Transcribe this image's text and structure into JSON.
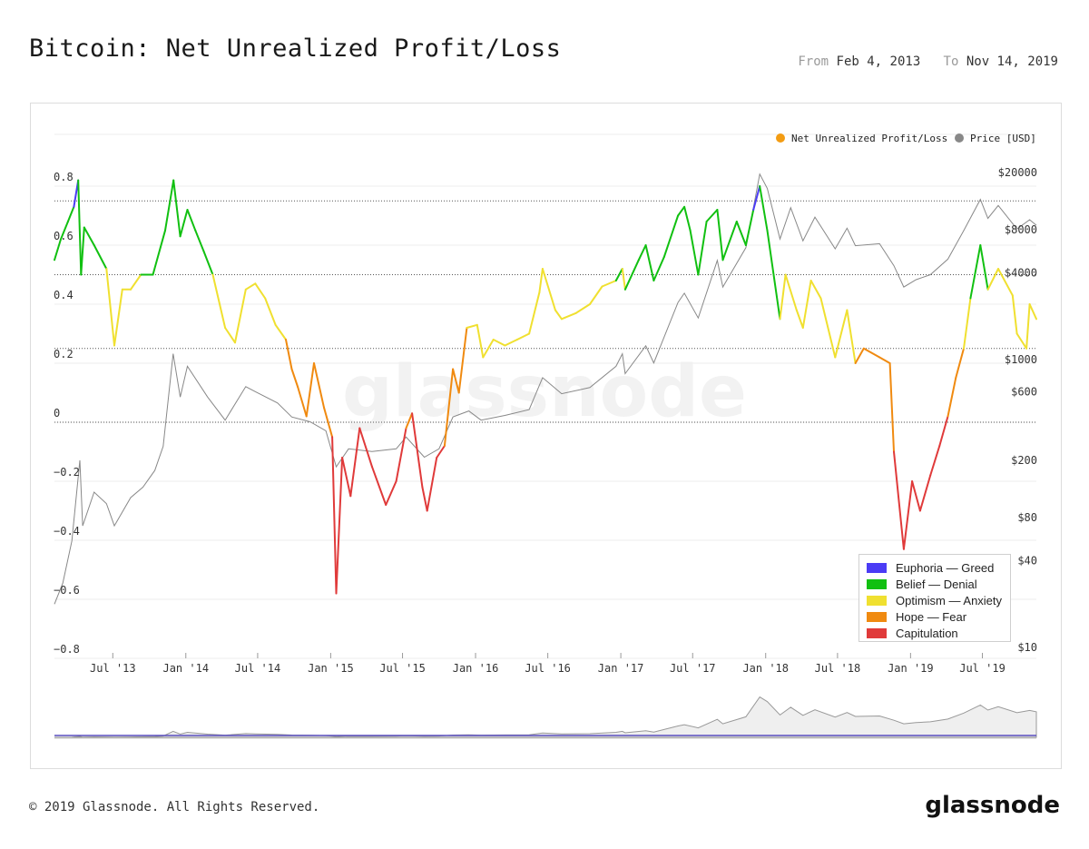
{
  "header": {
    "title": "Bitcoin: Net Unrealized Profit/Loss",
    "from_label": "From",
    "from_value": "Feb 4, 2013",
    "to_label": "To",
    "to_value": "Nov 14, 2019"
  },
  "footer": {
    "copyright": "© 2019 Glassnode. All Rights Reserved.",
    "brand": "glassnode"
  },
  "watermark": "glassnode",
  "colors": {
    "euphoria": "#4b3cf5",
    "belief": "#11c011",
    "optimism": "#f0e030",
    "hope": "#f08a10",
    "capitulation": "#e03a3a",
    "price": "#888888",
    "nupl_marker": "#f39c12"
  },
  "chart_data": {
    "type": "line",
    "title": "Bitcoin: Net Unrealized Profit/Loss",
    "x_ticks": [
      "Jul '13",
      "Jan '14",
      "Jul '14",
      "Jan '15",
      "Jul '15",
      "Jan '16",
      "Jul '16",
      "Jan '17",
      "Jul '17",
      "Jan '18",
      "Jul '18",
      "Jan '19",
      "Jul '19"
    ],
    "y_left_ticks": [
      "0.8",
      "0.6",
      "0.4",
      "0.2",
      "0",
      "−0.2",
      "−0.4",
      "−0.6",
      "−0.8"
    ],
    "y_left_range": [
      -0.8,
      0.8
    ],
    "y_right_ticks": [
      "$20000",
      "$8000",
      "$4000",
      "$1000",
      "$600",
      "$200",
      "$80",
      "$40",
      "$10"
    ],
    "y_right_scale": "log",
    "y_right_range": [
      10,
      20000
    ],
    "legend": {
      "series": [
        "Net Unrealized Profit/Loss",
        "Price [USD]"
      ],
      "placement": "top-right",
      "zones": [
        "Euphoria — Greed",
        "Belief — Denial",
        "Optimism — Anxiety",
        "Hope — Fear",
        "Capitulation"
      ]
    },
    "zone_thresholds": [
      0.75,
      0.5,
      0.25,
      0
    ],
    "x_range": [
      "2013-02-04",
      "2019-11-14"
    ],
    "series": [
      {
        "name": "Net Unrealized Profit/Loss",
        "points": [
          [
            "2013-02-04",
            0.55
          ],
          [
            "2013-02-20",
            0.62
          ],
          [
            "2013-03-10",
            0.68
          ],
          [
            "2013-03-25",
            0.73
          ],
          [
            "2013-04-05",
            0.82
          ],
          [
            "2013-04-12",
            0.5
          ],
          [
            "2013-04-20",
            0.66
          ],
          [
            "2013-05-15",
            0.6
          ],
          [
            "2013-06-15",
            0.52
          ],
          [
            "2013-07-05",
            0.26
          ],
          [
            "2013-07-25",
            0.45
          ],
          [
            "2013-08-15",
            0.45
          ],
          [
            "2013-09-10",
            0.5
          ],
          [
            "2013-10-10",
            0.5
          ],
          [
            "2013-11-10",
            0.65
          ],
          [
            "2013-12-01",
            0.82
          ],
          [
            "2013-12-18",
            0.63
          ],
          [
            "2014-01-05",
            0.72
          ],
          [
            "2014-01-25",
            0.65
          ],
          [
            "2014-02-15",
            0.58
          ],
          [
            "2014-03-10",
            0.5
          ],
          [
            "2014-04-10",
            0.32
          ],
          [
            "2014-05-05",
            0.27
          ],
          [
            "2014-06-01",
            0.45
          ],
          [
            "2014-06-25",
            0.47
          ],
          [
            "2014-07-20",
            0.42
          ],
          [
            "2014-08-15",
            0.33
          ],
          [
            "2014-09-10",
            0.28
          ],
          [
            "2014-09-25",
            0.18
          ],
          [
            "2014-10-10",
            0.12
          ],
          [
            "2014-11-01",
            0.02
          ],
          [
            "2014-11-20",
            0.2
          ],
          [
            "2014-12-15",
            0.05
          ],
          [
            "2015-01-05",
            -0.05
          ],
          [
            "2015-01-15",
            -0.58
          ],
          [
            "2015-01-30",
            -0.12
          ],
          [
            "2015-02-20",
            -0.25
          ],
          [
            "2015-03-15",
            -0.02
          ],
          [
            "2015-04-15",
            -0.15
          ],
          [
            "2015-05-20",
            -0.28
          ],
          [
            "2015-06-15",
            -0.2
          ],
          [
            "2015-07-10",
            -0.02
          ],
          [
            "2015-07-25",
            0.03
          ],
          [
            "2015-08-20",
            -0.22
          ],
          [
            "2015-09-01",
            -0.3
          ],
          [
            "2015-09-25",
            -0.12
          ],
          [
            "2015-10-15",
            -0.08
          ],
          [
            "2015-11-05",
            0.18
          ],
          [
            "2015-11-20",
            0.1
          ],
          [
            "2015-12-10",
            0.32
          ],
          [
            "2016-01-05",
            0.33
          ],
          [
            "2016-01-20",
            0.22
          ],
          [
            "2016-02-15",
            0.28
          ],
          [
            "2016-03-15",
            0.26
          ],
          [
            "2016-04-15",
            0.28
          ],
          [
            "2016-05-15",
            0.3
          ],
          [
            "2016-06-10",
            0.44
          ],
          [
            "2016-06-18",
            0.52
          ],
          [
            "2016-07-20",
            0.38
          ],
          [
            "2016-08-05",
            0.35
          ],
          [
            "2016-09-10",
            0.37
          ],
          [
            "2016-10-15",
            0.4
          ],
          [
            "2016-11-15",
            0.46
          ],
          [
            "2016-12-20",
            0.48
          ],
          [
            "2017-01-05",
            0.52
          ],
          [
            "2017-01-12",
            0.45
          ],
          [
            "2017-02-15",
            0.55
          ],
          [
            "2017-03-05",
            0.6
          ],
          [
            "2017-03-25",
            0.48
          ],
          [
            "2017-04-20",
            0.56
          ],
          [
            "2017-05-25",
            0.7
          ],
          [
            "2017-06-10",
            0.73
          ],
          [
            "2017-06-25",
            0.65
          ],
          [
            "2017-07-15",
            0.5
          ],
          [
            "2017-08-05",
            0.68
          ],
          [
            "2017-09-01",
            0.72
          ],
          [
            "2017-09-15",
            0.55
          ],
          [
            "2017-10-20",
            0.68
          ],
          [
            "2017-11-12",
            0.6
          ],
          [
            "2017-12-01",
            0.72
          ],
          [
            "2017-12-17",
            0.8
          ],
          [
            "2018-01-05",
            0.65
          ],
          [
            "2018-02-06",
            0.35
          ],
          [
            "2018-02-20",
            0.5
          ],
          [
            "2018-03-20",
            0.38
          ],
          [
            "2018-04-05",
            0.32
          ],
          [
            "2018-04-25",
            0.48
          ],
          [
            "2018-05-20",
            0.42
          ],
          [
            "2018-06-25",
            0.22
          ],
          [
            "2018-07-25",
            0.38
          ],
          [
            "2018-08-15",
            0.2
          ],
          [
            "2018-09-05",
            0.25
          ],
          [
            "2018-10-15",
            0.22
          ],
          [
            "2018-11-10",
            0.2
          ],
          [
            "2018-11-20",
            -0.1
          ],
          [
            "2018-12-15",
            -0.43
          ],
          [
            "2019-01-05",
            -0.2
          ],
          [
            "2019-01-25",
            -0.3
          ],
          [
            "2019-02-20",
            -0.18
          ],
          [
            "2019-03-15",
            -0.08
          ],
          [
            "2019-04-05",
            0.02
          ],
          [
            "2019-04-25",
            0.15
          ],
          [
            "2019-05-15",
            0.25
          ],
          [
            "2019-06-01",
            0.42
          ],
          [
            "2019-06-26",
            0.6
          ],
          [
            "2019-07-15",
            0.45
          ],
          [
            "2019-08-10",
            0.52
          ],
          [
            "2019-09-15",
            0.43
          ],
          [
            "2019-09-26",
            0.3
          ],
          [
            "2019-10-20",
            0.25
          ],
          [
            "2019-10-28",
            0.4
          ],
          [
            "2019-11-14",
            0.35
          ]
        ]
      },
      {
        "name": "Price [USD]",
        "points": [
          [
            "2013-02-04",
            20
          ],
          [
            "2013-02-25",
            28
          ],
          [
            "2013-03-20",
            55
          ],
          [
            "2013-04-09",
            200
          ],
          [
            "2013-04-16",
            70
          ],
          [
            "2013-05-15",
            120
          ],
          [
            "2013-06-15",
            100
          ],
          [
            "2013-07-05",
            70
          ],
          [
            "2013-08-15",
            110
          ],
          [
            "2013-09-15",
            130
          ],
          [
            "2013-10-15",
            170
          ],
          [
            "2013-11-05",
            250
          ],
          [
            "2013-11-30",
            1100
          ],
          [
            "2013-12-18",
            550
          ],
          [
            "2014-01-05",
            900
          ],
          [
            "2014-02-25",
            550
          ],
          [
            "2014-04-10",
            380
          ],
          [
            "2014-06-01",
            650
          ],
          [
            "2014-06-25",
            600
          ],
          [
            "2014-08-20",
            500
          ],
          [
            "2014-09-25",
            400
          ],
          [
            "2014-11-10",
            370
          ],
          [
            "2014-12-20",
            320
          ],
          [
            "2015-01-15",
            180
          ],
          [
            "2015-02-15",
            240
          ],
          [
            "2015-04-15",
            230
          ],
          [
            "2015-06-15",
            240
          ],
          [
            "2015-07-10",
            290
          ],
          [
            "2015-08-25",
            210
          ],
          [
            "2015-10-01",
            240
          ],
          [
            "2015-11-05",
            400
          ],
          [
            "2015-12-15",
            440
          ],
          [
            "2016-01-15",
            380
          ],
          [
            "2016-03-15",
            410
          ],
          [
            "2016-05-15",
            450
          ],
          [
            "2016-06-18",
            750
          ],
          [
            "2016-08-05",
            580
          ],
          [
            "2016-10-15",
            640
          ],
          [
            "2016-12-20",
            900
          ],
          [
            "2017-01-05",
            1100
          ],
          [
            "2017-01-12",
            800
          ],
          [
            "2017-03-05",
            1250
          ],
          [
            "2017-03-25",
            950
          ],
          [
            "2017-05-25",
            2500
          ],
          [
            "2017-06-10",
            2900
          ],
          [
            "2017-07-15",
            1950
          ],
          [
            "2017-09-01",
            4900
          ],
          [
            "2017-09-15",
            3200
          ],
          [
            "2017-11-12",
            6000
          ],
          [
            "2017-12-17",
            19500
          ],
          [
            "2018-01-05",
            15500
          ],
          [
            "2018-02-06",
            6900
          ],
          [
            "2018-03-05",
            11400
          ],
          [
            "2018-04-05",
            6700
          ],
          [
            "2018-05-05",
            9800
          ],
          [
            "2018-06-25",
            5900
          ],
          [
            "2018-07-25",
            8200
          ],
          [
            "2018-08-15",
            6200
          ],
          [
            "2018-10-15",
            6400
          ],
          [
            "2018-11-20",
            4500
          ],
          [
            "2018-12-15",
            3200
          ],
          [
            "2019-01-15",
            3600
          ],
          [
            "2019-02-20",
            3900
          ],
          [
            "2019-04-05",
            5000
          ],
          [
            "2019-05-15",
            7900
          ],
          [
            "2019-06-26",
            13000
          ],
          [
            "2019-07-15",
            9600
          ],
          [
            "2019-08-10",
            11800
          ],
          [
            "2019-09-26",
            8100
          ],
          [
            "2019-10-28",
            9400
          ],
          [
            "2019-11-14",
            8600
          ]
        ]
      }
    ]
  }
}
